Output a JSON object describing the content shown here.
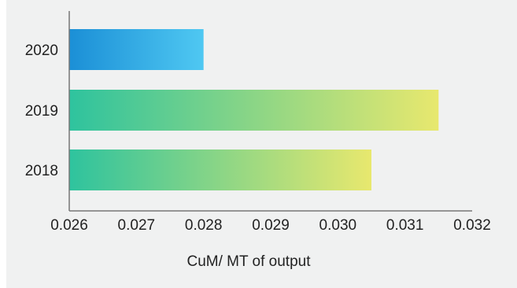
{
  "chart_data": {
    "type": "bar",
    "orientation": "horizontal",
    "categories": [
      "2020",
      "2019",
      "2018"
    ],
    "values": [
      0.028,
      0.0315,
      0.0305
    ],
    "xlabel": "CuM/ MT of output",
    "ylabel": "",
    "xlim": [
      0.026,
      0.032
    ],
    "x_ticks": [
      "0.026",
      "0.027",
      "0.028",
      "0.029",
      "0.030",
      "0.031",
      "0.032"
    ],
    "grid": false,
    "bar_colors": [
      [
        "#1b8fd6",
        "#4fc8f2"
      ],
      [
        "#2ec39e",
        "#e8e86e"
      ],
      [
        "#2ec39e",
        "#e8e86e"
      ]
    ]
  }
}
